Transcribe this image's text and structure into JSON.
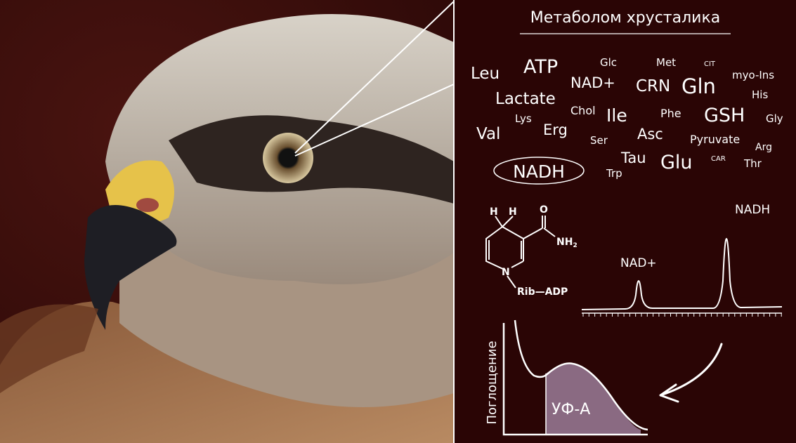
{
  "title": "Метаболом хрусталика",
  "colors": {
    "background": "#2a0505",
    "text": "#ffffff",
    "uva_fill": "#8a6a82"
  },
  "photo": {
    "subject": "eagle-head-photo"
  },
  "metabolites": [
    "Leu",
    "ATP",
    "Glc",
    "Met",
    "CIT",
    "myo-Ins",
    "NAD+",
    "CRN",
    "Gln",
    "His",
    "Lactate",
    "Chol",
    "Ile",
    "Phe",
    "GSH",
    "Gly",
    "Lys",
    "Erg",
    "Val",
    "Ser",
    "Asc",
    "Pyruvate",
    "Arg",
    "Tau",
    "Glu",
    "CAR",
    "Thr",
    "Trp",
    "NADH"
  ],
  "highlighted_metabolite": "NADH",
  "structure": {
    "h1": "H",
    "h2": "H",
    "o": "O",
    "nh": "NH",
    "sub2": "2",
    "n": "N",
    "substituent": "Rib—ADP"
  },
  "spectrum": {
    "peak_small_label": "NAD+",
    "peak_large_label": "NADH"
  },
  "absorbance": {
    "ylabel": "Поглощение",
    "region_label": "УФ-А"
  }
}
